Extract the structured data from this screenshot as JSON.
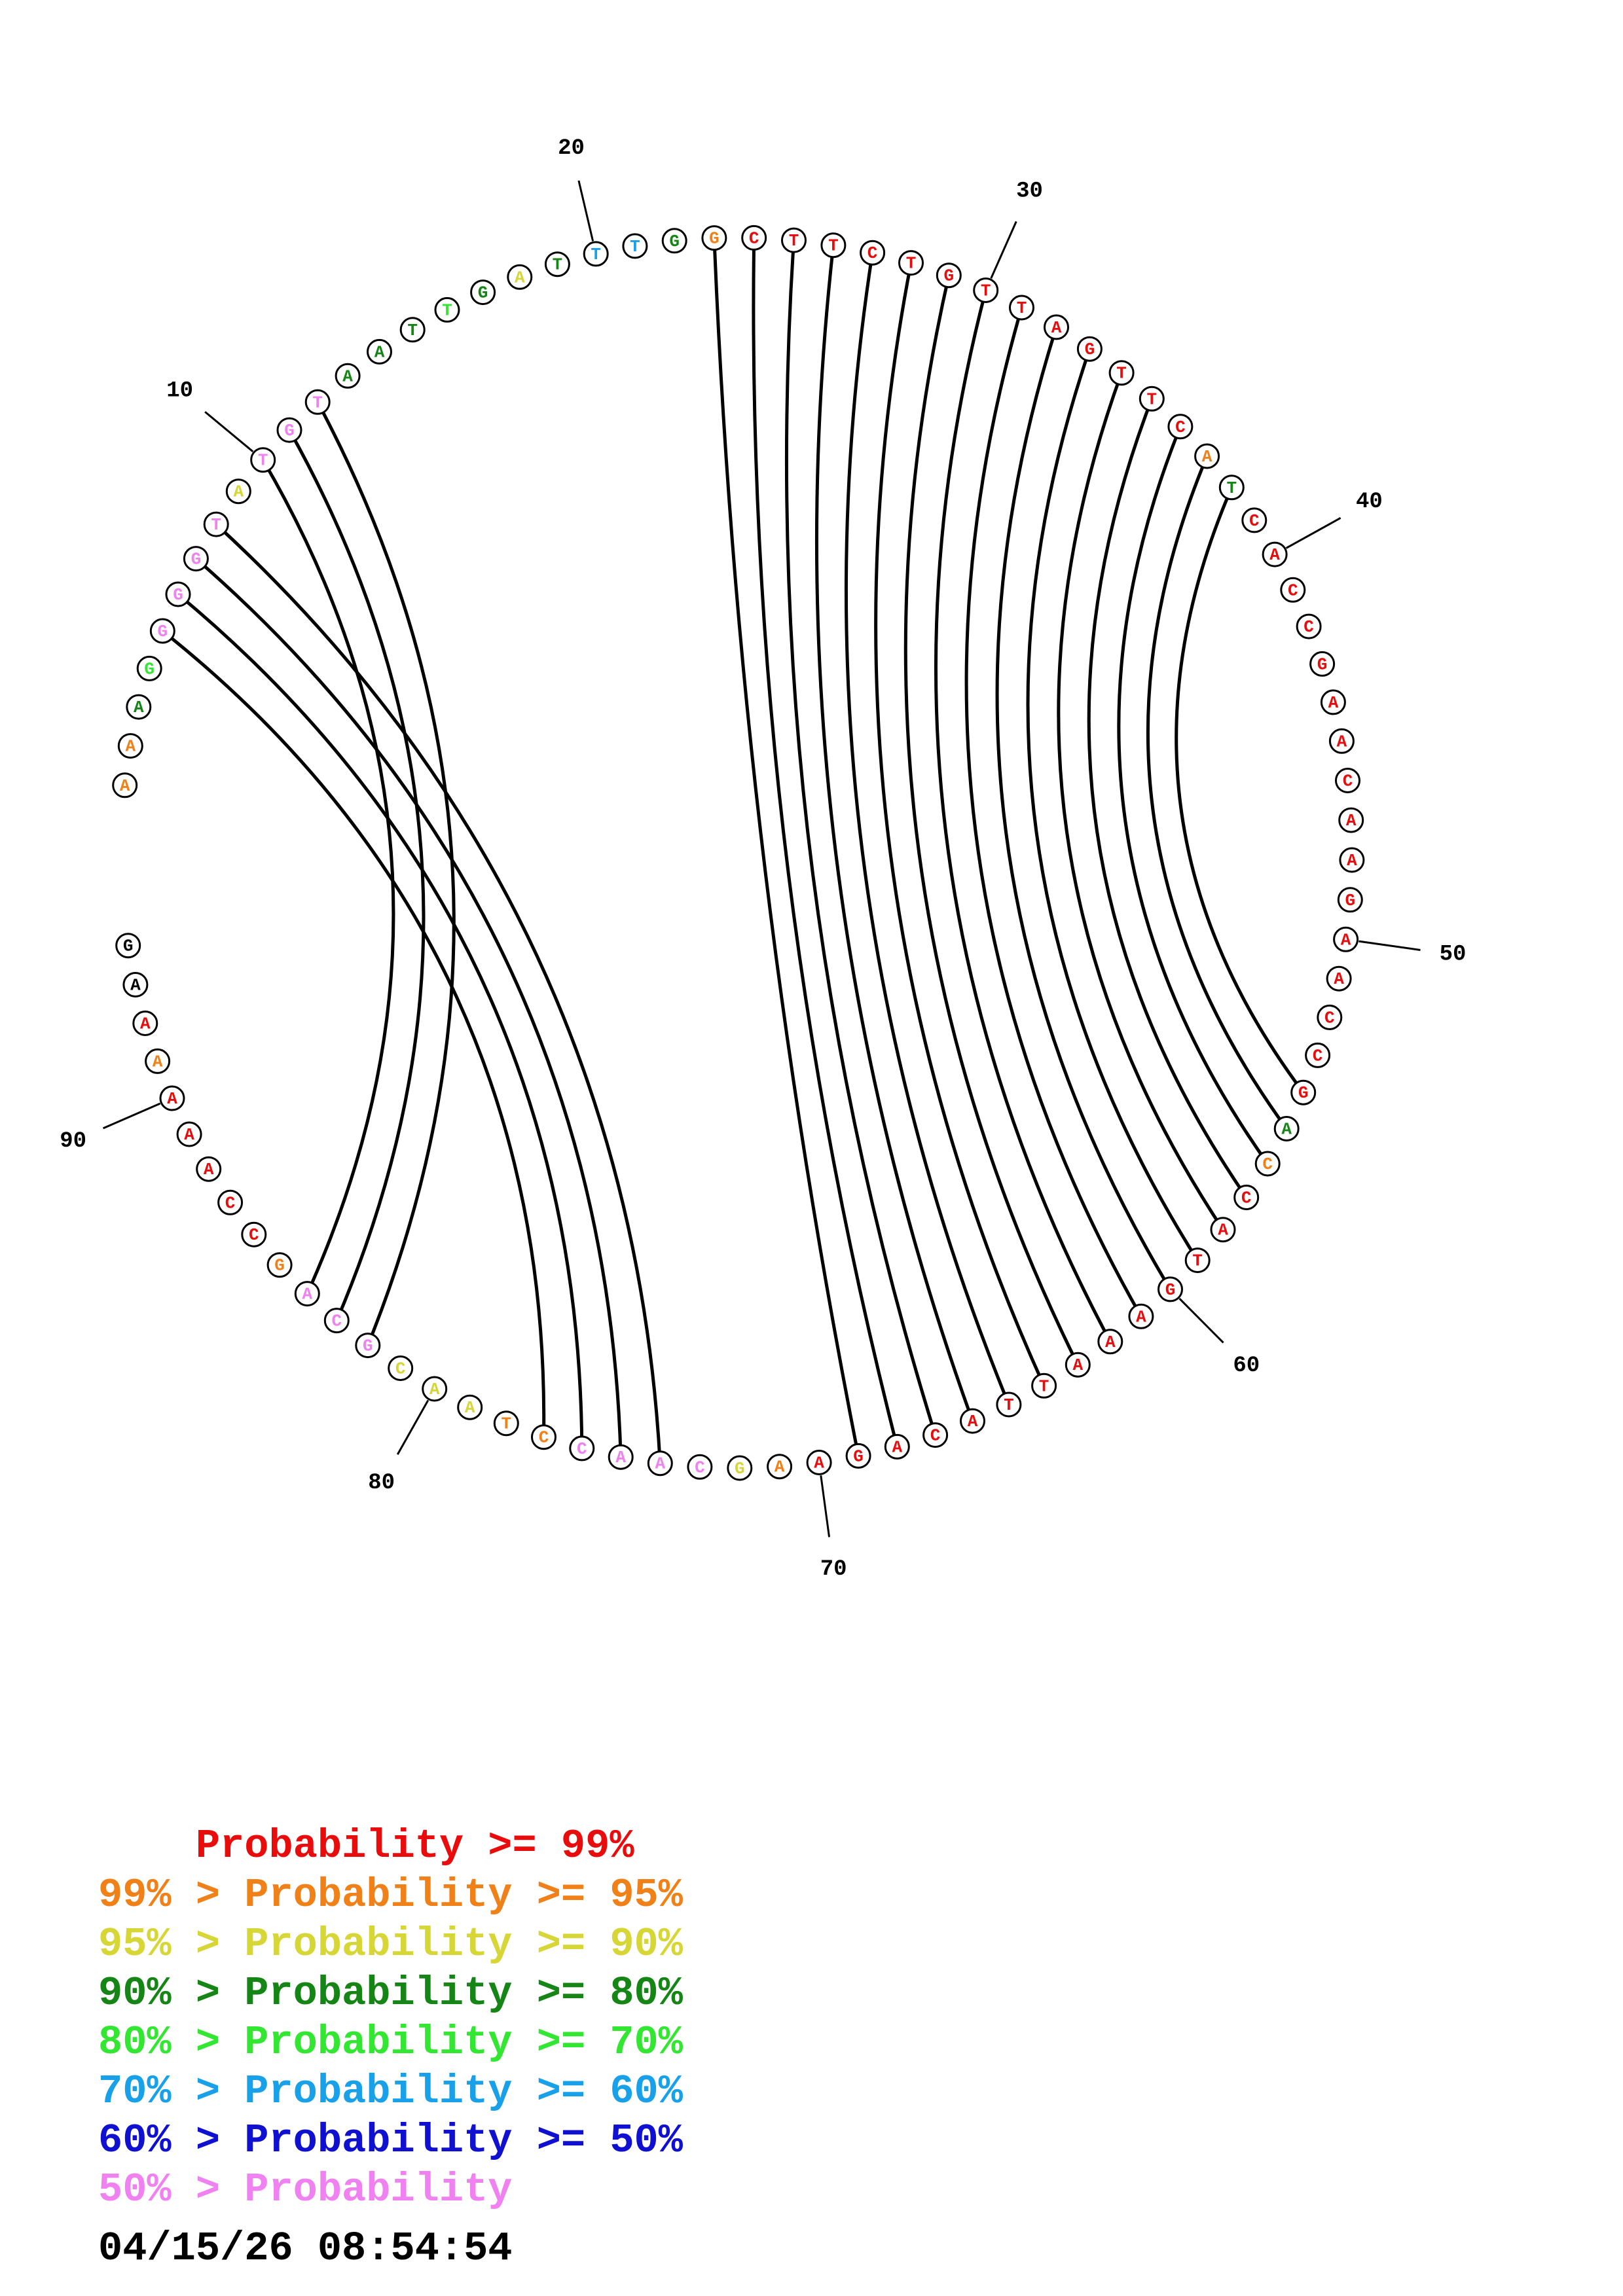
{
  "sequence": "AAAGGGGTATGTAATTGATTTGGCTTCTGTTAGTTCATCACCGAACAAGAACCGACCATGAAATTACAGAAGCAACCTAACGCAGCCAAAAAAG",
  "nucleotide_colors": [
    "#f08018",
    "#f08018",
    "#158515",
    "#32e632",
    "#f081f0",
    "#f081f0",
    "#f081f0",
    "#f081f0",
    "#d6d636",
    "#f081f0",
    "#f081f0",
    "#f081f0",
    "#158515",
    "#158515",
    "#158515",
    "#32e632",
    "#158515",
    "#d6d636",
    "#158515",
    "#18a0e8",
    "#18a0e8",
    "#158515",
    "#f08018",
    "#e80c0c",
    "#e80c0c",
    "#e80c0c",
    "#e80c0c",
    "#e80c0c",
    "#e80c0c",
    "#e80c0c",
    "#e80c0c",
    "#e80c0c",
    "#e80c0c",
    "#e80c0c",
    "#e80c0c",
    "#e80c0c",
    "#f08018",
    "#158515",
    "#e80c0c",
    "#e80c0c",
    "#e80c0c",
    "#e80c0c",
    "#e80c0c",
    "#e80c0c",
    "#e80c0c",
    "#e80c0c",
    "#e80c0c",
    "#e80c0c",
    "#e80c0c",
    "#e80c0c",
    "#e80c0c",
    "#e80c0c",
    "#e80c0c",
    "#e80c0c",
    "#158515",
    "#f08018",
    "#e80c0c",
    "#e80c0c",
    "#e80c0c",
    "#e80c0c",
    "#e80c0c",
    "#e80c0c",
    "#e80c0c",
    "#e80c0c",
    "#e80c0c",
    "#e80c0c",
    "#e80c0c",
    "#e80c0c",
    "#e80c0c",
    "#e80c0c",
    "#f08018",
    "#d6d636",
    "#f081f0",
    "#f081f0",
    "#f081f0",
    "#f081f0",
    "#f08018",
    "#f08018",
    "#d6d636",
    "#d6d636",
    "#d6d636",
    "#f081f0",
    "#f081f0",
    "#f081f0",
    "#f08018",
    "#e80c0c",
    "#e80c0c",
    "#e80c0c",
    "#e80c0c",
    "#e80c0c",
    "#f08018",
    "#e80c0c"
  ],
  "base_pairs": [
    [
      5,
      77
    ],
    [
      6,
      76
    ],
    [
      7,
      75
    ],
    [
      8,
      74
    ],
    [
      10,
      84
    ],
    [
      11,
      83
    ],
    [
      12,
      82
    ],
    [
      23,
      69
    ],
    [
      24,
      68
    ],
    [
      25,
      67
    ],
    [
      26,
      66
    ],
    [
      27,
      65
    ],
    [
      28,
      64
    ],
    [
      29,
      63
    ],
    [
      30,
      62
    ],
    [
      31,
      61
    ],
    [
      32,
      60
    ],
    [
      33,
      59
    ],
    [
      34,
      58
    ],
    [
      35,
      57
    ],
    [
      36,
      56
    ],
    [
      37,
      55
    ],
    [
      38,
      54
    ]
  ],
  "position_labels": [
    "10",
    "20",
    "30",
    "40",
    "50",
    "60",
    "70",
    "80",
    "90"
  ],
  "legend": [
    {
      "prefix": "    ",
      "text": "Probability >= 99%",
      "color": "#e80c0c"
    },
    {
      "prefix": "",
      "text": "99% > Probability >= 95%",
      "color": "#f08018"
    },
    {
      "prefix": "",
      "text": "95% > Probability >= 90%",
      "color": "#d6d636"
    },
    {
      "prefix": "",
      "text": "90% > Probability >= 80%",
      "color": "#158515"
    },
    {
      "prefix": "",
      "text": "80% > Probability >= 70%",
      "color": "#32e632"
    },
    {
      "prefix": "",
      "text": "70% > Probability >= 60%",
      "color": "#18a0e8"
    },
    {
      "prefix": "",
      "text": "60% > Probability >= 50%",
      "color": "#1010d0"
    },
    {
      "prefix": "",
      "text": "50% > Probability",
      "color": "#f081f0"
    }
  ],
  "timestamp": "04/15/26 08:54:54"
}
